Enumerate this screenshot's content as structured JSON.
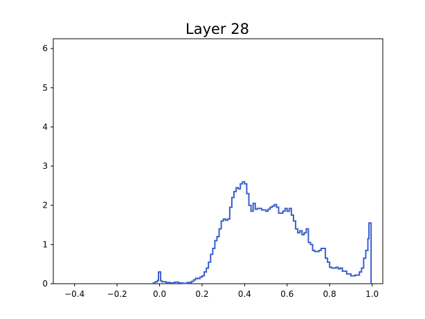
{
  "chart_data": {
    "type": "line",
    "title": "Layer 28",
    "xlabel": "",
    "ylabel": "",
    "xlim": [
      -0.5,
      1.05
    ],
    "ylim": [
      0,
      6.25
    ],
    "xticks": [
      -0.4,
      -0.2,
      0.0,
      0.2,
      0.4,
      0.6,
      0.8,
      1.0
    ],
    "xtick_labels": [
      "−0.4",
      "−0.2",
      "0.0",
      "0.2",
      "0.4",
      "0.6",
      "0.8",
      "1.0"
    ],
    "yticks": [
      0,
      1,
      2,
      3,
      4,
      5,
      6
    ],
    "ytick_labels": [
      "0",
      "1",
      "2",
      "3",
      "4",
      "5",
      "6"
    ],
    "grid": false,
    "legend": "none",
    "series": [
      {
        "color": "#3a5fcd",
        "style": "step",
        "points": [
          [
            -0.03,
            0.0
          ],
          [
            -0.03,
            0.02
          ],
          [
            -0.02,
            0.02
          ],
          [
            -0.02,
            0.05
          ],
          [
            -0.01,
            0.05
          ],
          [
            -0.01,
            0.08
          ],
          [
            -0.005,
            0.08
          ],
          [
            -0.005,
            0.3
          ],
          [
            0.005,
            0.3
          ],
          [
            0.005,
            0.08
          ],
          [
            0.01,
            0.08
          ],
          [
            0.01,
            0.05
          ],
          [
            0.03,
            0.05
          ],
          [
            0.03,
            0.03
          ],
          [
            0.05,
            0.03
          ],
          [
            0.05,
            0.02
          ],
          [
            0.07,
            0.02
          ],
          [
            0.07,
            0.04
          ],
          [
            0.09,
            0.04
          ],
          [
            0.09,
            0.02
          ],
          [
            0.11,
            0.02
          ],
          [
            0.11,
            0.01
          ],
          [
            0.13,
            0.01
          ],
          [
            0.13,
            0.03
          ],
          [
            0.15,
            0.03
          ],
          [
            0.15,
            0.06
          ],
          [
            0.16,
            0.06
          ],
          [
            0.16,
            0.1
          ],
          [
            0.17,
            0.1
          ],
          [
            0.17,
            0.14
          ],
          [
            0.18,
            0.14
          ],
          [
            0.18,
            0.13
          ],
          [
            0.19,
            0.13
          ],
          [
            0.19,
            0.17
          ],
          [
            0.2,
            0.17
          ],
          [
            0.2,
            0.2
          ],
          [
            0.21,
            0.2
          ],
          [
            0.21,
            0.3
          ],
          [
            0.22,
            0.3
          ],
          [
            0.22,
            0.4
          ],
          [
            0.23,
            0.4
          ],
          [
            0.23,
            0.55
          ],
          [
            0.24,
            0.55
          ],
          [
            0.24,
            0.75
          ],
          [
            0.25,
            0.75
          ],
          [
            0.25,
            0.9
          ],
          [
            0.26,
            0.9
          ],
          [
            0.26,
            1.1
          ],
          [
            0.27,
            1.1
          ],
          [
            0.27,
            1.2
          ],
          [
            0.28,
            1.2
          ],
          [
            0.28,
            1.4
          ],
          [
            0.29,
            1.4
          ],
          [
            0.29,
            1.6
          ],
          [
            0.3,
            1.6
          ],
          [
            0.3,
            1.65
          ],
          [
            0.31,
            1.65
          ],
          [
            0.31,
            1.62
          ],
          [
            0.32,
            1.62
          ],
          [
            0.32,
            1.65
          ],
          [
            0.33,
            1.65
          ],
          [
            0.33,
            1.95
          ],
          [
            0.34,
            1.95
          ],
          [
            0.34,
            2.2
          ],
          [
            0.35,
            2.2
          ],
          [
            0.35,
            2.35
          ],
          [
            0.36,
            2.35
          ],
          [
            0.36,
            2.45
          ],
          [
            0.37,
            2.45
          ],
          [
            0.37,
            2.42
          ],
          [
            0.38,
            2.42
          ],
          [
            0.38,
            2.55
          ],
          [
            0.39,
            2.55
          ],
          [
            0.39,
            2.6
          ],
          [
            0.4,
            2.6
          ],
          [
            0.4,
            2.55
          ],
          [
            0.41,
            2.55
          ],
          [
            0.41,
            2.3
          ],
          [
            0.42,
            2.3
          ],
          [
            0.42,
            2.0
          ],
          [
            0.43,
            2.0
          ],
          [
            0.43,
            1.85
          ],
          [
            0.44,
            1.85
          ],
          [
            0.44,
            2.05
          ],
          [
            0.45,
            2.05
          ],
          [
            0.45,
            1.9
          ],
          [
            0.46,
            1.9
          ],
          [
            0.46,
            1.92
          ],
          [
            0.48,
            1.92
          ],
          [
            0.48,
            1.88
          ],
          [
            0.5,
            1.88
          ],
          [
            0.5,
            1.85
          ],
          [
            0.51,
            1.85
          ],
          [
            0.51,
            1.9
          ],
          [
            0.52,
            1.9
          ],
          [
            0.52,
            1.95
          ],
          [
            0.53,
            1.95
          ],
          [
            0.53,
            1.98
          ],
          [
            0.54,
            1.98
          ],
          [
            0.54,
            2.02
          ],
          [
            0.55,
            2.02
          ],
          [
            0.55,
            1.95
          ],
          [
            0.56,
            1.95
          ],
          [
            0.56,
            1.8
          ],
          [
            0.58,
            1.8
          ],
          [
            0.58,
            1.85
          ],
          [
            0.59,
            1.85
          ],
          [
            0.59,
            1.92
          ],
          [
            0.6,
            1.92
          ],
          [
            0.6,
            1.85
          ],
          [
            0.61,
            1.85
          ],
          [
            0.61,
            1.92
          ],
          [
            0.62,
            1.92
          ],
          [
            0.62,
            1.75
          ],
          [
            0.63,
            1.75
          ],
          [
            0.63,
            1.6
          ],
          [
            0.64,
            1.6
          ],
          [
            0.64,
            1.4
          ],
          [
            0.65,
            1.4
          ],
          [
            0.65,
            1.3
          ],
          [
            0.66,
            1.3
          ],
          [
            0.66,
            1.35
          ],
          [
            0.67,
            1.35
          ],
          [
            0.67,
            1.25
          ],
          [
            0.68,
            1.25
          ],
          [
            0.68,
            1.3
          ],
          [
            0.69,
            1.3
          ],
          [
            0.69,
            1.4
          ],
          [
            0.7,
            1.4
          ],
          [
            0.7,
            1.05
          ],
          [
            0.71,
            1.05
          ],
          [
            0.71,
            1.0
          ],
          [
            0.72,
            1.0
          ],
          [
            0.72,
            0.85
          ],
          [
            0.73,
            0.85
          ],
          [
            0.73,
            0.82
          ],
          [
            0.75,
            0.82
          ],
          [
            0.75,
            0.85
          ],
          [
            0.76,
            0.85
          ],
          [
            0.76,
            0.9
          ],
          [
            0.78,
            0.9
          ],
          [
            0.78,
            0.65
          ],
          [
            0.79,
            0.65
          ],
          [
            0.79,
            0.55
          ],
          [
            0.8,
            0.55
          ],
          [
            0.8,
            0.42
          ],
          [
            0.81,
            0.42
          ],
          [
            0.81,
            0.4
          ],
          [
            0.83,
            0.4
          ],
          [
            0.83,
            0.42
          ],
          [
            0.84,
            0.42
          ],
          [
            0.84,
            0.38
          ],
          [
            0.85,
            0.38
          ],
          [
            0.85,
            0.4
          ],
          [
            0.86,
            0.4
          ],
          [
            0.86,
            0.32
          ],
          [
            0.88,
            0.32
          ],
          [
            0.88,
            0.25
          ],
          [
            0.9,
            0.25
          ],
          [
            0.9,
            0.2
          ],
          [
            0.92,
            0.2
          ],
          [
            0.92,
            0.22
          ],
          [
            0.94,
            0.22
          ],
          [
            0.94,
            0.3
          ],
          [
            0.95,
            0.3
          ],
          [
            0.95,
            0.4
          ],
          [
            0.96,
            0.4
          ],
          [
            0.96,
            0.65
          ],
          [
            0.97,
            0.65
          ],
          [
            0.97,
            0.85
          ],
          [
            0.98,
            0.85
          ],
          [
            0.98,
            1.15
          ],
          [
            0.985,
            1.15
          ],
          [
            0.985,
            1.55
          ],
          [
            0.995,
            1.55
          ],
          [
            0.995,
            0.0
          ]
        ]
      }
    ]
  }
}
